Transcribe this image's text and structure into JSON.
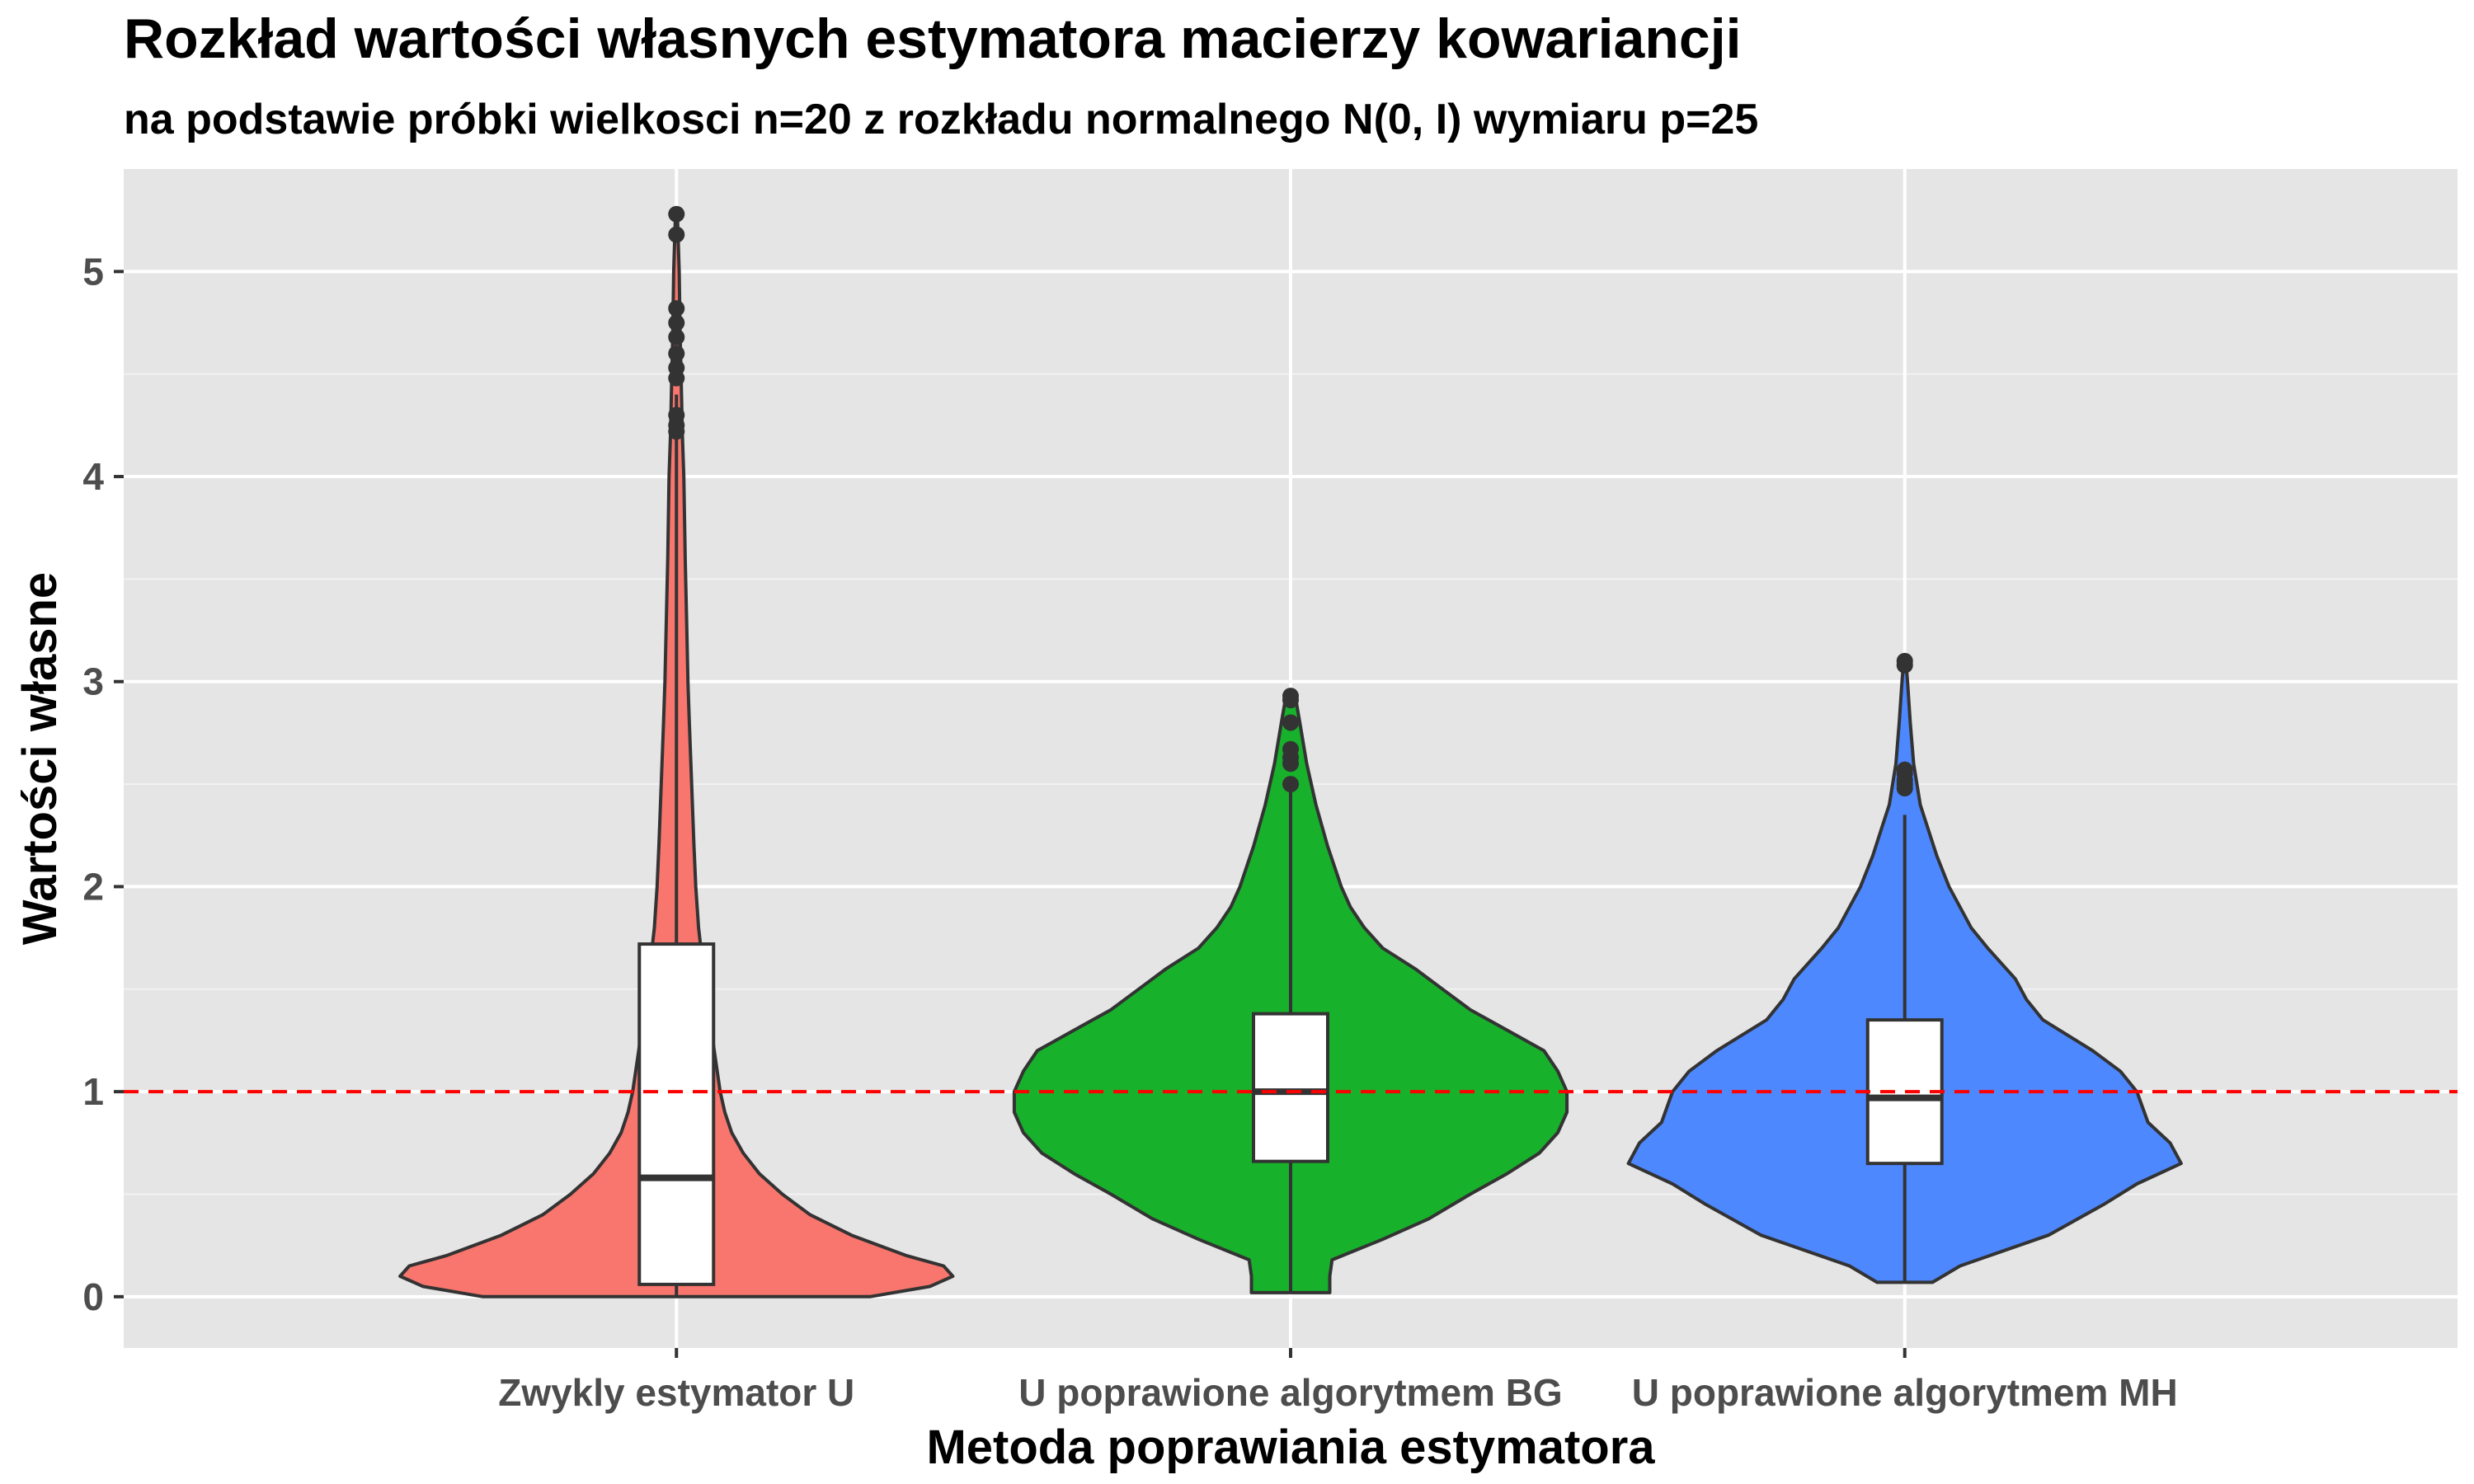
{
  "chart_data": {
    "type": "violin",
    "title": "Rozkład wartości własnych estymatora macierzy kowariancji",
    "subtitle": "na podstawie próbki wielkosci n=20 z rozkładu normalnego N(0, I) wymiaru p=25",
    "xlabel": "Metoda poprawiania estymatora",
    "ylabel": "Wartości własne",
    "ylim": [
      -0.25,
      5.5
    ],
    "yticks": [
      0,
      1,
      2,
      3,
      4,
      5
    ],
    "reference_line": {
      "y": 1,
      "color": "#ff0000",
      "style": "dashed"
    },
    "grid": true,
    "categories": [
      "Zwykly estymator U",
      "U poprawione algorytmem BG",
      "U poprawione algorytmem MH"
    ],
    "groups": [
      {
        "category": "Zwykly estymator U",
        "color": "#f8766d",
        "box": {
          "q1": 0.06,
          "median": 0.58,
          "q3": 1.72,
          "whisker_low": 0.0,
          "whisker_high": 4.4
        },
        "outliers": [
          5.28,
          5.18,
          4.82,
          4.75,
          4.68,
          4.6,
          4.53,
          4.48,
          4.3,
          4.25,
          4.22
        ],
        "density": [
          [
            0,
            0.42
          ],
          [
            0.05,
            0.55
          ],
          [
            0.1,
            0.6
          ],
          [
            0.15,
            0.58
          ],
          [
            0.2,
            0.5
          ],
          [
            0.3,
            0.38
          ],
          [
            0.4,
            0.29
          ],
          [
            0.5,
            0.23
          ],
          [
            0.6,
            0.18
          ],
          [
            0.7,
            0.145
          ],
          [
            0.8,
            0.12
          ],
          [
            0.9,
            0.105
          ],
          [
            1,
            0.095
          ],
          [
            1.2,
            0.082
          ],
          [
            1.4,
            0.07
          ],
          [
            1.6,
            0.058
          ],
          [
            1.8,
            0.048
          ],
          [
            2,
            0.042
          ],
          [
            2.2,
            0.038
          ],
          [
            2.5,
            0.033
          ],
          [
            2.8,
            0.028
          ],
          [
            3,
            0.025
          ],
          [
            3.3,
            0.022
          ],
          [
            3.6,
            0.019
          ],
          [
            4,
            0.016
          ],
          [
            4.2,
            0.013
          ],
          [
            4.4,
            0.011
          ],
          [
            4.7,
            0.008
          ],
          [
            5,
            0.006
          ],
          [
            5.28,
            0.002
          ]
        ]
      },
      {
        "category": "U poprawione algorytmem BG",
        "color": "#17b12b",
        "box": {
          "q1": 0.66,
          "median": 1.0,
          "q3": 1.38,
          "whisker_low": 0.02,
          "whisker_high": 2.48
        },
        "outliers": [
          2.93,
          2.91,
          2.8,
          2.67,
          2.63,
          2.6,
          2.5
        ],
        "density": [
          [
            0.02,
            0.085
          ],
          [
            0.1,
            0.085
          ],
          [
            0.18,
            0.09
          ],
          [
            0.28,
            0.2
          ],
          [
            0.38,
            0.3
          ],
          [
            0.5,
            0.39
          ],
          [
            0.6,
            0.47
          ],
          [
            0.7,
            0.54
          ],
          [
            0.8,
            0.58
          ],
          [
            0.9,
            0.6
          ],
          [
            1,
            0.6
          ],
          [
            1.1,
            0.58
          ],
          [
            1.2,
            0.55
          ],
          [
            1.3,
            0.47
          ],
          [
            1.4,
            0.39
          ],
          [
            1.5,
            0.33
          ],
          [
            1.6,
            0.27
          ],
          [
            1.7,
            0.2
          ],
          [
            1.8,
            0.16
          ],
          [
            1.9,
            0.13
          ],
          [
            2,
            0.11
          ],
          [
            2.2,
            0.08
          ],
          [
            2.4,
            0.055
          ],
          [
            2.6,
            0.035
          ],
          [
            2.8,
            0.02
          ],
          [
            2.93,
            0.01
          ]
        ]
      },
      {
        "category": "U poprawione algorytmem MH",
        "color": "#4d88ff",
        "box": {
          "q1": 0.65,
          "median": 0.97,
          "q3": 1.35,
          "whisker_low": 0.07,
          "whisker_high": 2.35
        },
        "outliers": [
          3.1,
          3.08,
          2.57,
          2.55,
          2.52,
          2.5,
          2.48
        ],
        "density": [
          [
            0.07,
            0.05
          ],
          [
            0.15,
            0.1
          ],
          [
            0.3,
            0.26
          ],
          [
            0.45,
            0.36
          ],
          [
            0.55,
            0.42
          ],
          [
            0.65,
            0.5
          ],
          [
            0.75,
            0.48
          ],
          [
            0.85,
            0.44
          ],
          [
            1,
            0.42
          ],
          [
            1.1,
            0.39
          ],
          [
            1.2,
            0.34
          ],
          [
            1.35,
            0.25
          ],
          [
            1.45,
            0.22
          ],
          [
            1.55,
            0.2
          ],
          [
            1.7,
            0.15
          ],
          [
            1.8,
            0.12
          ],
          [
            1.9,
            0.1
          ],
          [
            2,
            0.08
          ],
          [
            2.15,
            0.058
          ],
          [
            2.3,
            0.04
          ],
          [
            2.4,
            0.028
          ],
          [
            2.6,
            0.016
          ],
          [
            2.8,
            0.01
          ],
          [
            3,
            0.005
          ],
          [
            3.1,
            0.002
          ]
        ]
      }
    ]
  }
}
